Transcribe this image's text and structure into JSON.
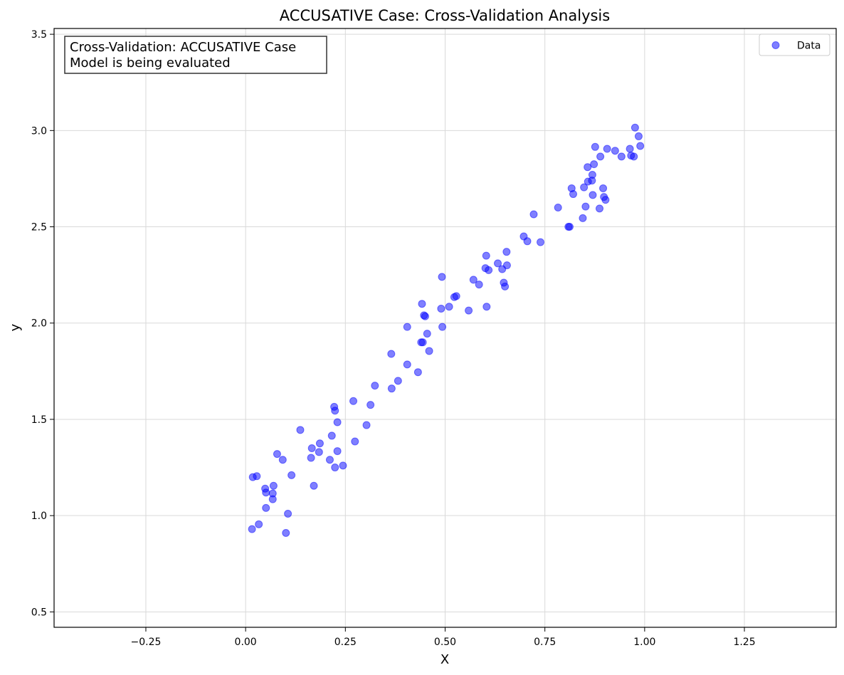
{
  "chart_data": {
    "type": "scatter",
    "title": "ACCUSATIVE Case: Cross-Validation Analysis",
    "xlabel": "X",
    "ylabel": "y",
    "xlim": [
      -0.48,
      1.48
    ],
    "ylim": [
      0.42,
      3.53
    ],
    "xticks": [
      -0.25,
      0.0,
      0.25,
      0.5,
      0.75,
      1.0,
      1.25
    ],
    "xtick_labels": [
      "−0.25",
      "0.00",
      "0.25",
      "0.50",
      "0.75",
      "1.00",
      "1.25"
    ],
    "yticks": [
      0.5,
      1.0,
      1.5,
      2.0,
      2.5,
      3.0,
      3.5
    ],
    "ytick_labels": [
      "0.5",
      "1.0",
      "1.5",
      "2.0",
      "2.5",
      "3.0",
      "3.5"
    ],
    "grid": true,
    "legend_position": "top-right",
    "annotation": [
      "Cross-Validation: ACCUSATIVE Case",
      "Model is being evaluated"
    ],
    "series": [
      {
        "name": "Data",
        "color": "#0000ff",
        "points": [
          [
            0.016,
            0.93
          ],
          [
            0.018,
            1.2
          ],
          [
            0.028,
            1.205
          ],
          [
            0.033,
            0.955
          ],
          [
            0.049,
            1.14
          ],
          [
            0.051,
            1.12
          ],
          [
            0.051,
            1.04
          ],
          [
            0.068,
            1.115
          ],
          [
            0.068,
            1.085
          ],
          [
            0.07,
            1.155
          ],
          [
            0.079,
            1.32
          ],
          [
            0.093,
            1.29
          ],
          [
            0.101,
            0.91
          ],
          [
            0.106,
            1.01
          ],
          [
            0.115,
            1.21
          ],
          [
            0.137,
            1.445
          ],
          [
            0.164,
            1.3
          ],
          [
            0.166,
            1.35
          ],
          [
            0.171,
            1.155
          ],
          [
            0.184,
            1.33
          ],
          [
            0.186,
            1.375
          ],
          [
            0.211,
            1.29
          ],
          [
            0.216,
            1.415
          ],
          [
            0.222,
            1.565
          ],
          [
            0.224,
            1.545
          ],
          [
            0.224,
            1.25
          ],
          [
            0.23,
            1.335
          ],
          [
            0.23,
            1.485
          ],
          [
            0.244,
            1.26
          ],
          [
            0.27,
            1.595
          ],
          [
            0.274,
            1.385
          ],
          [
            0.303,
            1.47
          ],
          [
            0.313,
            1.575
          ],
          [
            0.324,
            1.675
          ],
          [
            0.365,
            1.84
          ],
          [
            0.366,
            1.66
          ],
          [
            0.382,
            1.7
          ],
          [
            0.405,
            1.785
          ],
          [
            0.405,
            1.98
          ],
          [
            0.432,
            1.745
          ],
          [
            0.44,
            1.9
          ],
          [
            0.442,
            2.1
          ],
          [
            0.444,
            1.9
          ],
          [
            0.447,
            2.04
          ],
          [
            0.45,
            2.035
          ],
          [
            0.455,
            1.945
          ],
          [
            0.46,
            1.855
          ],
          [
            0.49,
            2.075
          ],
          [
            0.492,
            2.24
          ],
          [
            0.493,
            1.98
          ],
          [
            0.51,
            2.085
          ],
          [
            0.523,
            2.135
          ],
          [
            0.528,
            2.14
          ],
          [
            0.559,
            2.065
          ],
          [
            0.571,
            2.225
          ],
          [
            0.585,
            2.2
          ],
          [
            0.601,
            2.285
          ],
          [
            0.603,
            2.35
          ],
          [
            0.604,
            2.085
          ],
          [
            0.609,
            2.275
          ],
          [
            0.632,
            2.31
          ],
          [
            0.643,
            2.28
          ],
          [
            0.647,
            2.21
          ],
          [
            0.65,
            2.19
          ],
          [
            0.654,
            2.37
          ],
          [
            0.655,
            2.3
          ],
          [
            0.697,
            2.45
          ],
          [
            0.706,
            2.425
          ],
          [
            0.722,
            2.565
          ],
          [
            0.739,
            2.42
          ],
          [
            0.783,
            2.6
          ],
          [
            0.809,
            2.5
          ],
          [
            0.812,
            2.5
          ],
          [
            0.817,
            2.7
          ],
          [
            0.821,
            2.67
          ],
          [
            0.845,
            2.545
          ],
          [
            0.848,
            2.705
          ],
          [
            0.852,
            2.605
          ],
          [
            0.857,
            2.81
          ],
          [
            0.858,
            2.735
          ],
          [
            0.868,
            2.74
          ],
          [
            0.869,
            2.77
          ],
          [
            0.87,
            2.665
          ],
          [
            0.873,
            2.825
          ],
          [
            0.876,
            2.915
          ],
          [
            0.887,
            2.595
          ],
          [
            0.889,
            2.865
          ],
          [
            0.896,
            2.7
          ],
          [
            0.898,
            2.655
          ],
          [
            0.902,
            2.64
          ],
          [
            0.906,
            2.905
          ],
          [
            0.926,
            2.895
          ],
          [
            0.942,
            2.865
          ],
          [
            0.963,
            2.905
          ],
          [
            0.966,
            2.87
          ],
          [
            0.973,
            2.865
          ],
          [
            0.976,
            3.015
          ],
          [
            0.985,
            2.97
          ],
          [
            0.989,
            2.92
          ]
        ]
      }
    ]
  }
}
